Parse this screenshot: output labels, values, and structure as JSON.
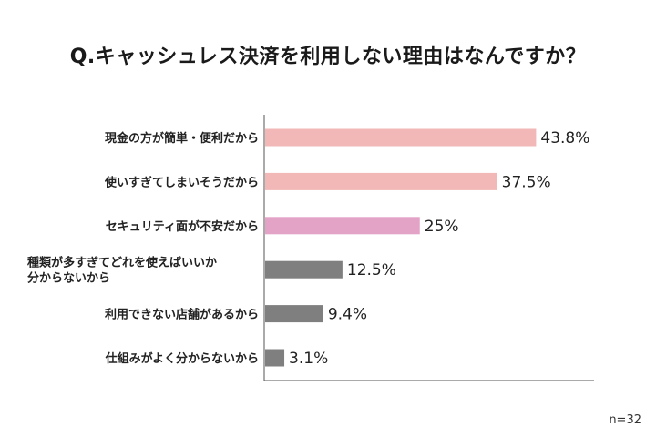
{
  "title": "Q.キャッシュレス決済を利用しない理由はなんですか？",
  "sample_note": "n=32",
  "colors": {
    "pink": "#f2b8b8",
    "purple": "#e3a3c7",
    "gray": "#7f7f7f",
    "axis": "#555555"
  },
  "chart_data": {
    "type": "bar",
    "orientation": "horizontal",
    "categories": [
      [
        "現金の方が簡単・便利だから"
      ],
      [
        "使いすぎてしまいそうだから"
      ],
      [
        "セキュリティ面が不安だから"
      ],
      [
        "種類が多すぎてどれを使えばいいか",
        "分からないから"
      ],
      [
        "利用できない店舗があるから"
      ],
      [
        "仕組みがよく分からないから"
      ]
    ],
    "values": [
      43.8,
      37.5,
      25,
      12.5,
      9.4,
      3.1
    ],
    "value_labels": [
      "43.8%",
      "37.5%",
      "25%",
      "12.5%",
      "9.4%",
      "3.1%"
    ],
    "bar_colors": [
      "pink",
      "pink",
      "purple",
      "gray",
      "gray",
      "gray"
    ],
    "xlim": [
      0,
      50
    ],
    "grid": false,
    "legend": "none"
  }
}
